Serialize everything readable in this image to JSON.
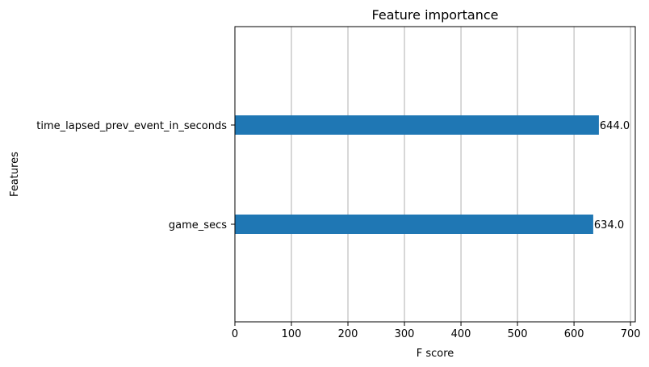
{
  "chart_data": {
    "type": "bar",
    "orientation": "horizontal",
    "title": "Feature importance",
    "xlabel": "F score",
    "ylabel": "Features",
    "categories": [
      "game_secs",
      "time_lapsed_prev_event_in_seconds"
    ],
    "values": [
      634,
      644
    ],
    "value_labels": [
      "634.0",
      "644.0"
    ],
    "x_ticks": [
      0,
      100,
      200,
      300,
      400,
      500,
      600,
      700
    ],
    "x_tick_labels": [
      "0",
      "100",
      "200",
      "300",
      "400",
      "500",
      "600",
      "700"
    ],
    "xlim": [
      0,
      708.4
    ],
    "grid": "x-axis vertical gridlines on",
    "legend": "none",
    "bar_color": "#1f77b4"
  }
}
